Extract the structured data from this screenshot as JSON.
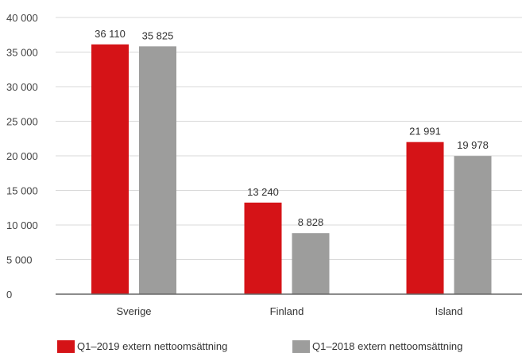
{
  "chart_data": {
    "type": "bar",
    "categories": [
      "Sverige",
      "Finland",
      "Island"
    ],
    "series": [
      {
        "name": "Q1–2019 extern nettoomsättning",
        "values": [
          36110,
          13240,
          21991
        ],
        "labels": [
          "36 110",
          "13 240",
          "21 991"
        ],
        "color": "#d51317"
      },
      {
        "name": "Q1–2018 extern nettoomsättning",
        "values": [
          35825,
          8828,
          19978
        ],
        "labels": [
          "35 825",
          "8 828",
          "19 978"
        ],
        "color": "#9d9d9c"
      }
    ],
    "ylim": [
      0,
      40000
    ],
    "yticks": [
      0,
      5000,
      10000,
      15000,
      20000,
      25000,
      30000,
      35000,
      40000
    ],
    "ytick_labels": [
      "0",
      "5 000",
      "10 000",
      "15 000",
      "20 000",
      "25 000",
      "30 000",
      "35 000",
      "40 000"
    ],
    "grid": true,
    "legend_position": "bottom",
    "title": "",
    "xlabel": "",
    "ylabel": ""
  }
}
